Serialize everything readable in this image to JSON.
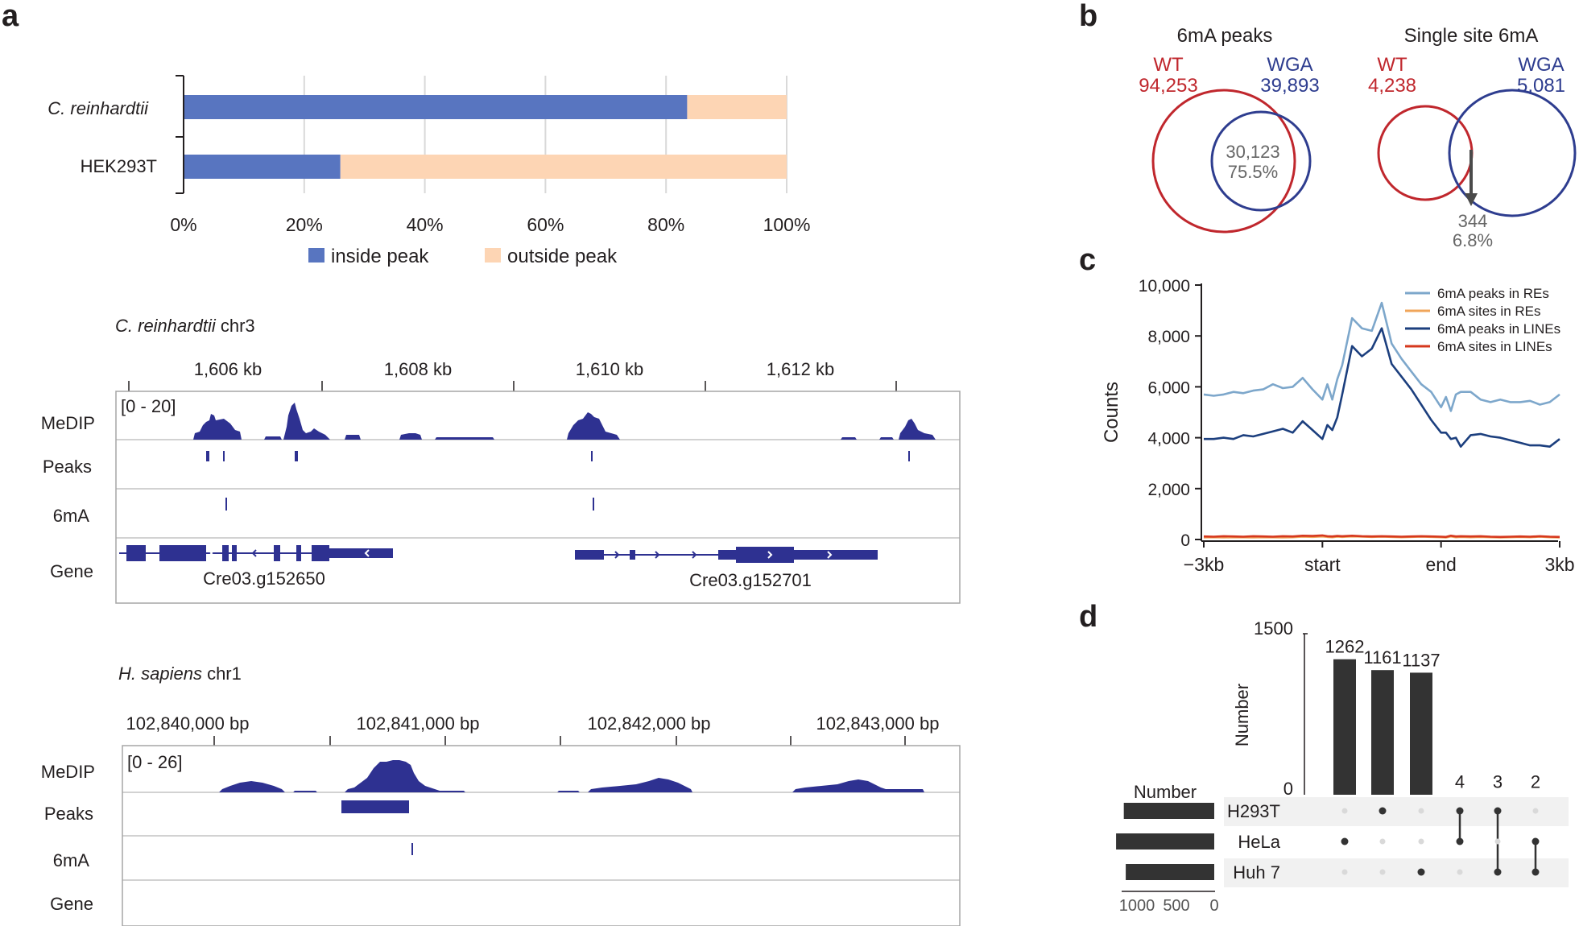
{
  "panel_labels": [
    "a",
    "b",
    "c",
    "d"
  ],
  "colors": {
    "inside_peak": "#5875c0",
    "outside_peak": "#fdd5b4",
    "track": "#2e3191",
    "venn_wt": "#c0272d",
    "venn_wga": "#2e3d8f",
    "line_peaks_re": "#7da7cb",
    "line_sites_re": "#f0a55a",
    "line_peaks_line": "#1c3f7e",
    "line_sites_line": "#d6381e",
    "upset_bar": "#333333"
  },
  "panel_a": {
    "stacked_bar": {
      "rows": [
        {
          "label": "C. reinhardtii",
          "italic": true
        },
        {
          "label": "HEK293T",
          "italic": false
        }
      ],
      "xticks": [
        "0%",
        "20%",
        "40%",
        "60%",
        "80%",
        "100%"
      ],
      "legend": [
        "inside peak",
        "outside peak"
      ]
    },
    "browser_cr": {
      "title_italic": "C. reinhardtii",
      "title_rest": " chr3",
      "coords": [
        "1,606 kb",
        "1,608 kb",
        "1,610 kb",
        "1,612 kb"
      ],
      "range": "[0 - 20]",
      "tracks": [
        "MeDIP",
        "Peaks",
        "6mA",
        "Gene"
      ],
      "genes": [
        "Cre03.g152650",
        "Cre03.g152701"
      ]
    },
    "browser_hs": {
      "title_italic": "H. sapiens",
      "title_rest": " chr1",
      "coords": [
        "102,840,000 bp",
        "102,841,000 bp",
        "102,842,000 bp",
        "102,843,000 bp"
      ],
      "range": "[0 - 26]",
      "tracks": [
        "MeDIP",
        "Peaks",
        "6mA",
        "Gene"
      ]
    }
  },
  "panel_b": {
    "venns": [
      {
        "title": "6mA peaks",
        "left_label": "WT",
        "left_count": "94,253",
        "right_label": "WGA",
        "right_count": "39,893",
        "overlap_count": "30,123",
        "overlap_pct": "75.5%"
      },
      {
        "title": "Single site 6mA",
        "left_label": "WT",
        "left_count": "4,238",
        "right_label": "WGA",
        "right_count": "5,081",
        "overlap_count": "344",
        "overlap_pct": "6.8%"
      }
    ]
  },
  "panel_c": {
    "ylabel": "Counts",
    "yticks": [
      "0",
      "2,000",
      "4,000",
      "6,000",
      "8,000",
      "10,000"
    ],
    "xticks": [
      "−3kb",
      "start",
      "end",
      "3kb"
    ],
    "legend": [
      "6mA peaks in REs",
      "6mA sites in REs",
      "6mA peaks in LINEs",
      "6mA sites in LINEs"
    ]
  },
  "panel_d": {
    "ylabel": "Number",
    "yticks": [
      "1500",
      "0"
    ],
    "bar_labels": [
      "1262",
      "1161",
      "1137",
      "4",
      "3",
      "2"
    ],
    "sets": [
      "H293T",
      "HeLa",
      "Huh 7"
    ],
    "set_size_title": "Number",
    "set_size_ticks": [
      "1000",
      "500",
      "0"
    ]
  },
  "chart_data": [
    {
      "type": "bar",
      "stacked": true,
      "orientation": "horizontal",
      "categories": [
        "C. reinhardtii",
        "HEK293T"
      ],
      "series": [
        {
          "name": "inside peak",
          "values": [
            83.5,
            26
          ]
        },
        {
          "name": "outside peak",
          "values": [
            16.5,
            74
          ]
        }
      ],
      "xlim": [
        0,
        100
      ],
      "grid": true,
      "legend_position": "bottom"
    },
    {
      "type": "line",
      "x": [
        -3,
        -2.75,
        -2.5,
        -2.25,
        -2,
        -1.75,
        -1.5,
        -1.25,
        -1,
        -0.75,
        -0.5,
        -0.25,
        0,
        0.125,
        0.25,
        0.375,
        0.5,
        0.75,
        1,
        1.25,
        1.5,
        1.75,
        2,
        2.25,
        2.5,
        2.75,
        3,
        3.125,
        3.25,
        3.375,
        3.5,
        3.75,
        4,
        4.25,
        4.5,
        4.75,
        5,
        5.25,
        5.5,
        5.75,
        6
      ],
      "series": [
        {
          "name": "6mA peaks in REs",
          "values": [
            5700,
            5650,
            5700,
            5800,
            5750,
            5850,
            5900,
            6100,
            5950,
            6000,
            6350,
            5900,
            5500,
            6100,
            5500,
            6300,
            6850,
            8700,
            8300,
            8200,
            9300,
            7700,
            7100,
            6600,
            6100,
            5800,
            5200,
            5600,
            5050,
            5700,
            5800,
            5800,
            5500,
            5400,
            5500,
            5400,
            5400,
            5450,
            5300,
            5400,
            5700
          ]
        },
        {
          "name": "6mA sites in REs",
          "values": [
            80,
            90,
            80,
            90,
            85,
            80,
            90,
            85,
            80,
            90,
            110,
            100,
            120,
            100,
            90,
            110,
            100,
            120,
            110,
            100,
            110,
            100,
            90,
            100,
            110,
            100,
            90,
            80,
            120,
            90,
            100,
            90,
            100,
            90,
            80,
            90,
            100,
            90,
            110,
            90,
            80
          ]
        },
        {
          "name": "6mA peaks in LINEs",
          "values": [
            3950,
            3950,
            4000,
            3950,
            4100,
            4050,
            4150,
            4250,
            4350,
            4200,
            4650,
            4300,
            3950,
            4500,
            4300,
            4800,
            5700,
            7600,
            7200,
            7500,
            8300,
            6900,
            6400,
            5900,
            5300,
            4700,
            4200,
            4200,
            3950,
            4000,
            3650,
            4100,
            4150,
            4050,
            4000,
            3900,
            3800,
            3700,
            3700,
            3650,
            3950
          ]
        },
        {
          "name": "6mA sites in LINEs",
          "values": [
            120,
            110,
            130,
            120,
            110,
            130,
            120,
            110,
            130,
            120,
            150,
            140,
            160,
            130,
            120,
            140,
            130,
            150,
            130,
            120,
            130,
            120,
            110,
            120,
            130,
            120,
            110,
            100,
            150,
            120,
            130,
            120,
            130,
            110,
            100,
            110,
            120,
            110,
            130,
            110,
            100
          ]
        }
      ],
      "xlabel": "",
      "ylabel": "Counts",
      "xticks": [
        "−3kb",
        "start",
        "end",
        "3kb"
      ],
      "ylim": [
        0,
        10000
      ],
      "legend_position": "top-right"
    },
    {
      "type": "bar",
      "categories": [
        "HeLa",
        "H293T",
        "Huh 7",
        "H293T & HeLa",
        "H293T & Huh 7",
        "HeLa & Huh 7"
      ],
      "values": [
        1262,
        1161,
        1137,
        4,
        3,
        2
      ],
      "ylabel": "Number",
      "ylim": [
        0,
        1500
      ],
      "set_sizes": [
        {
          "name": "H293T",
          "value": 1170
        },
        {
          "name": "HeLa",
          "value": 1270
        },
        {
          "name": "Huh 7",
          "value": 1145
        }
      ]
    }
  ]
}
